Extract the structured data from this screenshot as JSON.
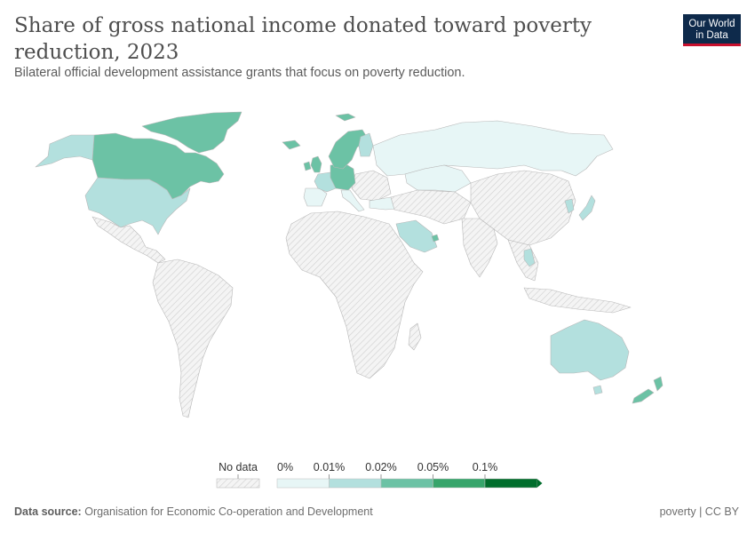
{
  "header": {
    "title": "Share of gross national income donated toward poverty reduction, 2023",
    "subtitle": "Bilateral official development assistance grants that focus on poverty reduction.",
    "logo_line1": "Our World",
    "logo_line2": "in Data"
  },
  "legend": {
    "no_data_label": "No data",
    "bins": [
      {
        "label": "0%",
        "color": "#e7f6f6"
      },
      {
        "label": "0.01%",
        "color": "#b3e0de"
      },
      {
        "label": "0.02%",
        "color": "#6cc2a5"
      },
      {
        "label": "0.05%",
        "color": "#37a56b"
      },
      {
        "label": "0.1%",
        "color": "#006d2c"
      }
    ]
  },
  "footer": {
    "source_label": "Data source:",
    "source_text": "Organisation for Economic Co-operation and Development",
    "right_text": "poverty | CC BY"
  },
  "colors": {
    "no_data_fill": "#f2f2f2",
    "border": "#bdbdbd",
    "bin_0": "#e7f6f6",
    "bin_001": "#b3e0de",
    "bin_002": "#6cc2a5"
  },
  "regions": [
    {
      "name": "United States",
      "bin": "0.01%"
    },
    {
      "name": "Canada",
      "bin": "0.02%"
    },
    {
      "name": "Greenland",
      "bin": "0.02%"
    },
    {
      "name": "Australia",
      "bin": "0.01%"
    },
    {
      "name": "New Zealand",
      "bin": "0.02%"
    },
    {
      "name": "Japan",
      "bin": "0.01%"
    },
    {
      "name": "Korea",
      "bin": "0.01%"
    },
    {
      "name": "Russia",
      "bin": "0%"
    },
    {
      "name": "Norway",
      "bin": "0.02%"
    },
    {
      "name": "Sweden",
      "bin": "0.02%"
    },
    {
      "name": "Finland",
      "bin": "0.01%"
    },
    {
      "name": "Iceland",
      "bin": "0.02%"
    },
    {
      "name": "United Kingdom",
      "bin": "0.02%"
    },
    {
      "name": "Ireland",
      "bin": "0.02%"
    },
    {
      "name": "France",
      "bin": "0.01%"
    },
    {
      "name": "Germany",
      "bin": "0.02%"
    },
    {
      "name": "Spain",
      "bin": "0%"
    },
    {
      "name": "Italy",
      "bin": "0%"
    },
    {
      "name": "Turkey",
      "bin": "0%"
    },
    {
      "name": "Kazakhstan",
      "bin": "0%"
    },
    {
      "name": "Saudi Arabia",
      "bin": "0.01%"
    },
    {
      "name": "United Arab Emirates",
      "bin": "0.02%"
    },
    {
      "name": "Thailand",
      "bin": "0.01%"
    }
  ]
}
